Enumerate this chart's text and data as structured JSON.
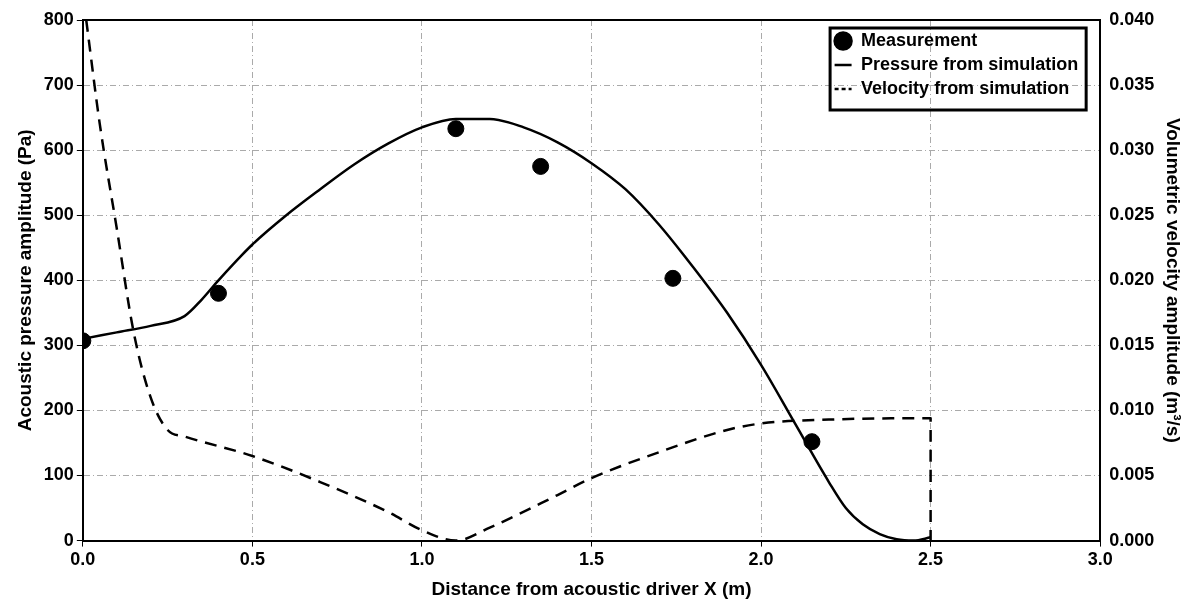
{
  "chart_data": {
    "type": "line",
    "xlabel": "Distance from acoustic driver X (m)",
    "ylabel": "Acoustic pressure amplitude (Pa)",
    "y2label": "Volumetric velocity amplitude (m³/s)",
    "xlim": [
      0,
      3
    ],
    "xticks": [
      {
        "value": 0,
        "label": "0.0"
      },
      {
        "value": 0.5,
        "label": "0.5"
      },
      {
        "value": 1,
        "label": "1.0"
      },
      {
        "value": 1.5,
        "label": "1.5"
      },
      {
        "value": 2,
        "label": "2.0"
      },
      {
        "value": 2.5,
        "label": "2.5"
      },
      {
        "value": 3,
        "label": "3.0"
      }
    ],
    "ylim": [
      0,
      800
    ],
    "yticks": [
      0,
      100,
      200,
      300,
      400,
      500,
      600,
      700,
      800
    ],
    "y2lim": [
      0,
      0.04
    ],
    "y2ticks": [
      {
        "value": 0,
        "label": "0.000"
      },
      {
        "value": 0.005,
        "label": "0.005"
      },
      {
        "value": 0.01,
        "label": "0.010"
      },
      {
        "value": 0.015,
        "label": "0.015"
      },
      {
        "value": 0.02,
        "label": "0.020"
      },
      {
        "value": 0.025,
        "label": "0.025"
      },
      {
        "value": 0.03,
        "label": "0.030"
      },
      {
        "value": 0.035,
        "label": "0.035"
      },
      {
        "value": 0.04,
        "label": "0.040"
      }
    ],
    "grid": true,
    "legend": "top right",
    "series": [
      {
        "name": "Measurement",
        "type": "scatter",
        "marker": "circle",
        "color": "#000000",
        "x": [
          0,
          0.4,
          1.1,
          1.35,
          1.74,
          2.15
        ],
        "values": [
          307,
          380,
          633,
          575,
          403,
          152
        ]
      },
      {
        "name": "Pressure from simulation",
        "marker": "none",
        "line_style": "solid",
        "color": "#000000",
        "x": [
          0,
          0.1,
          0.2,
          0.3,
          0.35,
          0.4,
          0.5,
          0.6,
          0.7,
          0.8,
          0.9,
          1.0,
          1.1,
          1.2,
          1.3,
          1.4,
          1.5,
          1.6,
          1.7,
          1.8,
          1.9,
          2.0,
          2.1,
          2.2,
          2.25,
          2.3,
          2.35,
          2.4,
          2.45,
          2.5
        ],
        "values": [
          310,
          320,
          330,
          345,
          370,
          400,
          455,
          500,
          540,
          578,
          610,
          635,
          648,
          648,
          635,
          612,
          580,
          540,
          485,
          420,
          350,
          270,
          180,
          90,
          50,
          25,
          10,
          2,
          0,
          5
        ]
      },
      {
        "name": "Velocity from simulation",
        "marker": "none",
        "line_style": "dashed",
        "axis": "y2",
        "color": "#000000",
        "x": [
          0.01,
          0.05,
          0.1,
          0.15,
          0.2,
          0.25,
          0.3,
          0.5,
          0.7,
          0.9,
          1.0,
          1.1,
          1.2,
          1.4,
          1.5,
          1.7,
          1.9,
          2.0,
          2.2,
          2.5,
          2.5
        ],
        "values": [
          0.04,
          0.032,
          0.024,
          0.016,
          0.011,
          0.0085,
          0.008,
          0.0065,
          0.0045,
          0.0022,
          0.0008,
          0,
          0.001,
          0.0035,
          0.0048,
          0.0068,
          0.0085,
          0.009,
          0.0093,
          0.0094,
          0
        ]
      }
    ]
  }
}
